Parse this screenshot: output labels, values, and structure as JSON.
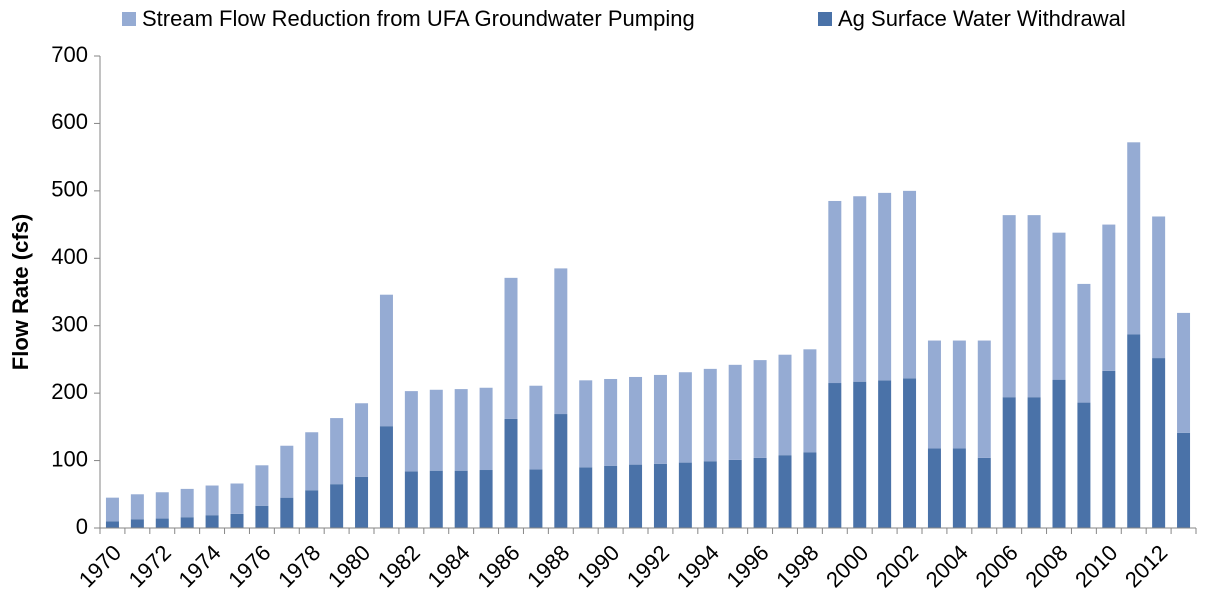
{
  "chart_data": {
    "type": "bar",
    "stacked": true,
    "y_label": "Flow Rate (cfs)",
    "categories": [
      "1970",
      null,
      "1972",
      null,
      "1974",
      null,
      "1976",
      null,
      "1978",
      null,
      "1980",
      null,
      "1982",
      null,
      "1984",
      null,
      "1986",
      null,
      "1988",
      null,
      "1990",
      null,
      "1992",
      null,
      "1994",
      null,
      "1996",
      null,
      "1998",
      null,
      "2000",
      null,
      "2002",
      null,
      "2004",
      null,
      "2006",
      null,
      "2008",
      null,
      "2010",
      null,
      "2012",
      null
    ],
    "series": [
      {
        "name": "Stream Flow Reduction from UFA Groundwater Pumping",
        "color": "#95abd3",
        "values": [
          35,
          37,
          39,
          42,
          44,
          45,
          60,
          77,
          86,
          98,
          109,
          195,
          119,
          120,
          121,
          122,
          209,
          124,
          216,
          129,
          129,
          130,
          132,
          134,
          137,
          141,
          145,
          149,
          153,
          270,
          275,
          278,
          278,
          160,
          160,
          174,
          270,
          270,
          218,
          176,
          217,
          285,
          210,
          178
        ]
      },
      {
        "name": "Ag Surface Water Withdrawal",
        "color": "#4a72a8",
        "values": [
          10,
          13,
          14,
          16,
          19,
          21,
          33,
          45,
          56,
          65,
          76,
          151,
          84,
          85,
          85,
          86,
          162,
          87,
          169,
          90,
          92,
          94,
          95,
          97,
          99,
          101,
          104,
          108,
          112,
          215,
          217,
          219,
          222,
          118,
          118,
          104,
          194,
          194,
          220,
          186,
          233,
          287,
          252,
          141
        ]
      }
    ],
    "ylim": [
      0,
      700
    ],
    "yticks": [
      0,
      100,
      200,
      300,
      400,
      500,
      600,
      700
    ],
    "grid": false
  }
}
